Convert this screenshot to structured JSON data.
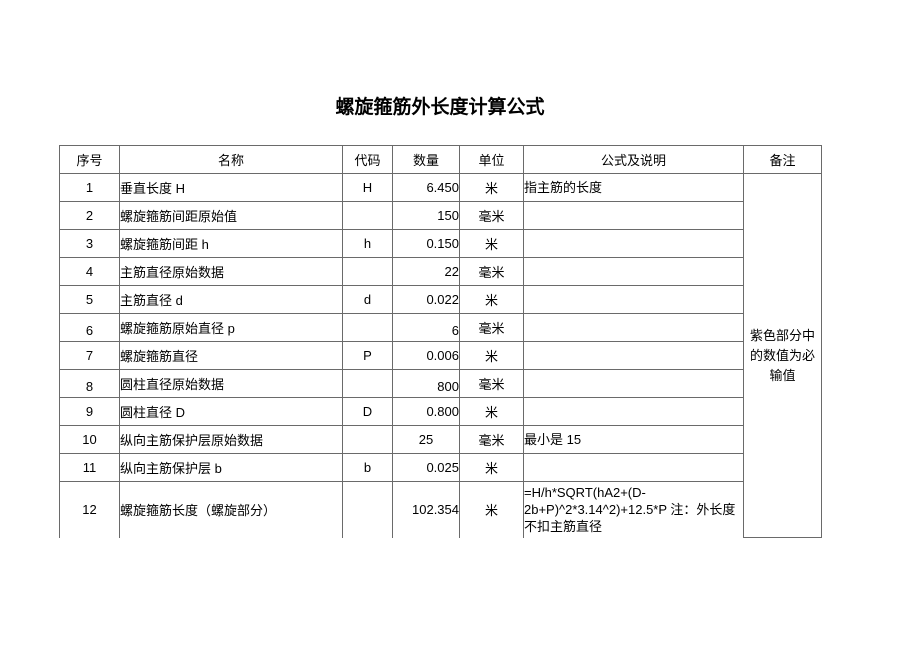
{
  "page": {
    "title": "螺旋箍筋外长度计算公式"
  },
  "colors": {
    "highlight_yellow": "#FFFF00",
    "input_magenta": "#FF00FF",
    "border_gray": "#6a6a6a"
  },
  "table": {
    "headers": [
      "序号",
      "名称",
      "代码",
      "数量",
      "单位",
      "公式及说明",
      "备注"
    ],
    "remark": "紫色部分中的数值为必输值",
    "rows": [
      {
        "seq": "1",
        "name": "垂直长度 H",
        "code": "H",
        "qty": "6.450",
        "unit": "米",
        "formula": "指主筋的长度",
        "highlighted": true,
        "required_input": true
      },
      {
        "seq": "2",
        "name": "螺旋箍筋间距原始值",
        "code": "",
        "qty": "150",
        "unit": "毫米",
        "formula": "",
        "highlighted": true,
        "required_input": true
      },
      {
        "seq": "3",
        "name": "螺旋箍筋间距 h",
        "code": "h",
        "qty": "0.150",
        "unit": "米",
        "formula": "",
        "highlighted": false,
        "required_input": false
      },
      {
        "seq": "4",
        "name": "主筋直径原始数据",
        "code": "",
        "qty": "22",
        "unit": "毫米",
        "formula": "",
        "highlighted": true,
        "required_input": true
      },
      {
        "seq": "5",
        "name": "主筋直径 d",
        "code": "d",
        "qty": "0.022",
        "unit": "米",
        "formula": "",
        "highlighted": false,
        "required_input": false
      },
      {
        "seq": "6",
        "name": "螺旋箍筋原始直径 p",
        "code": "",
        "qty": "6",
        "unit": "毫米",
        "formula": "",
        "highlighted": true,
        "required_input": true
      },
      {
        "seq": "7",
        "name": "螺旋箍筋直径",
        "code": "P",
        "qty": "0.006",
        "unit": "米",
        "formula": "",
        "highlighted": false,
        "required_input": false
      },
      {
        "seq": "8",
        "name": "圆柱直径原始数据",
        "code": "",
        "qty": "800",
        "unit": "毫米",
        "formula": "",
        "highlighted": true,
        "required_input": true
      },
      {
        "seq": "9",
        "name": "圆柱直径 D",
        "code": "D",
        "qty": "0.800",
        "unit": "米",
        "formula": "",
        "highlighted": false,
        "required_input": false
      },
      {
        "seq": "10",
        "name": "纵向主筋保护层原始数据",
        "code": "",
        "qty": "25",
        "unit": "毫米",
        "formula": "最小是 15",
        "highlighted": true,
        "required_input": true
      },
      {
        "seq": "11",
        "name": "纵向主筋保护层 b",
        "code": "b",
        "qty": "0.025",
        "unit": "米",
        "formula": "",
        "highlighted": false,
        "required_input": false
      },
      {
        "seq": "12",
        "name": "螺旋箍筋长度（螺旋部分）",
        "code": "",
        "qty": "102.354",
        "unit": "米",
        "formula": "=H/h*SQRT(hA2+(D-2b+P)^2*3.14^2)+12.5*P 注：外长度不扣主筋直径",
        "highlighted": false,
        "required_input": false
      }
    ]
  }
}
